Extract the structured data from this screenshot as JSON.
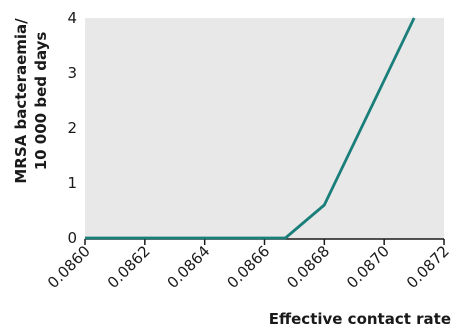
{
  "chart_data": {
    "type": "line",
    "title": "",
    "xlabel": "Effective contact rate",
    "ylabel_lines": [
      "MRSA bacteraemia/",
      "10 000 bed days"
    ],
    "xlim": [
      0.086,
      0.0872
    ],
    "ylim": [
      0,
      4
    ],
    "x_ticks": [
      "0.0860",
      "0.0862",
      "0.0864",
      "0.0866",
      "0.0868",
      "0.0870",
      "0.0872"
    ],
    "y_ticks": [
      "0",
      "1",
      "2",
      "3",
      "4"
    ],
    "grid": false,
    "legend": "none",
    "series": [
      {
        "color": "#1a7f7a",
        "points": [
          {
            "x": 0.086,
            "y": 0
          },
          {
            "x": 0.08667,
            "y": 0
          },
          {
            "x": 0.0868,
            "y": 0.6
          },
          {
            "x": 0.0871,
            "y": 4
          }
        ]
      }
    ],
    "colors": {
      "plot_background": "#e8e8e8",
      "axis_line": "#1a1a1a"
    }
  }
}
